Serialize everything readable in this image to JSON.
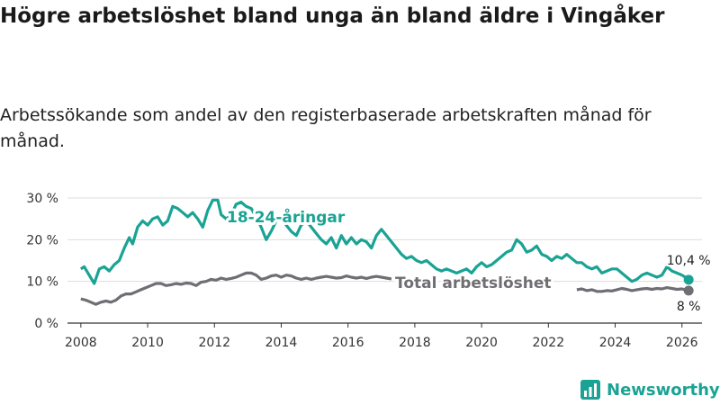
{
  "title": "Högre arbetslöshet bland unga än bland äldre i Vingåker",
  "subtitle": "Arbetssökande som andel av den registerbaserade arbetskraften månad för månad.",
  "brand": {
    "name": "Newsworthy",
    "color": "#1aa394",
    "icon": "bar-chart-logo-icon"
  },
  "chart_data": {
    "type": "line",
    "title": "Högre arbetslöshet bland unga än bland äldre i Vingåker",
    "xlabel": "",
    "ylabel": "",
    "xlim": [
      2007.6,
      2026.6
    ],
    "ylim": [
      0,
      30
    ],
    "grid": true,
    "x_ticks": [
      2008,
      2010,
      2012,
      2014,
      2016,
      2018,
      2020,
      2022,
      2024,
      2026
    ],
    "x_tick_labels": [
      "2008",
      "2010",
      "2012",
      "2014",
      "2016",
      "2018",
      "2020",
      "2022",
      "2024",
      "2026"
    ],
    "y_ticks": [
      0,
      10,
      20,
      30
    ],
    "y_tick_labels": [
      "0 %",
      "10 %",
      "20 %",
      "30 %"
    ],
    "series": [
      {
        "name": "18-24-åringar",
        "label": "18-24-åringar",
        "color": "#1aa394",
        "end_label": "10,4 %",
        "points": [
          [
            2008.0,
            13.0
          ],
          [
            2008.1,
            13.5
          ],
          [
            2008.25,
            11.5
          ],
          [
            2008.4,
            9.5
          ],
          [
            2008.55,
            13.0
          ],
          [
            2008.7,
            13.5
          ],
          [
            2008.85,
            12.5
          ],
          [
            2009.0,
            14.0
          ],
          [
            2009.15,
            15.0
          ],
          [
            2009.3,
            18.0
          ],
          [
            2009.45,
            20.5
          ],
          [
            2009.55,
            19.0
          ],
          [
            2009.7,
            23.0
          ],
          [
            2009.85,
            24.5
          ],
          [
            2010.0,
            23.5
          ],
          [
            2010.15,
            25.0
          ],
          [
            2010.3,
            25.5
          ],
          [
            2010.45,
            23.5
          ],
          [
            2010.6,
            24.5
          ],
          [
            2010.75,
            28.0
          ],
          [
            2010.9,
            27.5
          ],
          [
            2011.05,
            26.5
          ],
          [
            2011.2,
            25.5
          ],
          [
            2011.35,
            26.5
          ],
          [
            2011.5,
            25.0
          ],
          [
            2011.65,
            23.0
          ],
          [
            2011.8,
            27.0
          ],
          [
            2011.95,
            29.5
          ],
          [
            2012.1,
            29.5
          ],
          [
            2012.2,
            26.0
          ],
          [
            2012.35,
            25.0
          ],
          [
            2012.5,
            26.0
          ],
          [
            2012.65,
            28.5
          ],
          [
            2012.8,
            29.0
          ],
          [
            2012.95,
            28.0
          ],
          [
            2013.1,
            27.5
          ],
          [
            2013.25,
            25.5
          ],
          [
            2013.4,
            23.0
          ],
          [
            2013.55,
            20.0
          ],
          [
            2013.7,
            22.0
          ],
          [
            2013.85,
            24.5
          ],
          [
            2014.0,
            25.0
          ],
          [
            2014.15,
            23.5
          ],
          [
            2014.3,
            22.0
          ],
          [
            2014.45,
            21.0
          ],
          [
            2014.6,
            23.5
          ],
          [
            2014.75,
            24.5
          ],
          [
            2014.9,
            23.0
          ],
          [
            2015.05,
            21.5
          ],
          [
            2015.2,
            20.0
          ],
          [
            2015.35,
            19.0
          ],
          [
            2015.5,
            20.5
          ],
          [
            2015.65,
            18.0
          ],
          [
            2015.8,
            21.0
          ],
          [
            2015.95,
            19.0
          ],
          [
            2016.1,
            20.5
          ],
          [
            2016.25,
            19.0
          ],
          [
            2016.4,
            20.0
          ],
          [
            2016.55,
            19.5
          ],
          [
            2016.7,
            18.0
          ],
          [
            2016.85,
            21.0
          ],
          [
            2017.0,
            22.5
          ],
          [
            2017.15,
            21.0
          ],
          [
            2017.3,
            19.5
          ],
          [
            2017.45,
            18.0
          ],
          [
            2017.6,
            16.5
          ],
          [
            2017.75,
            15.5
          ],
          [
            2017.9,
            16.0
          ],
          [
            2018.05,
            15.0
          ],
          [
            2018.2,
            14.5
          ],
          [
            2018.35,
            15.0
          ],
          [
            2018.5,
            14.0
          ],
          [
            2018.65,
            13.0
          ],
          [
            2018.8,
            12.5
          ],
          [
            2018.95,
            13.0
          ],
          [
            2019.1,
            12.5
          ],
          [
            2019.25,
            12.0
          ],
          [
            2019.4,
            12.5
          ],
          [
            2019.55,
            13.0
          ],
          [
            2019.7,
            12.0
          ],
          [
            2019.85,
            13.5
          ],
          [
            2020.0,
            14.5
          ],
          [
            2020.15,
            13.5
          ],
          [
            2020.3,
            14.0
          ],
          [
            2020.45,
            15.0
          ],
          [
            2020.6,
            16.0
          ],
          [
            2020.75,
            17.0
          ],
          [
            2020.9,
            17.5
          ],
          [
            2021.05,
            20.0
          ],
          [
            2021.2,
            19.0
          ],
          [
            2021.35,
            17.0
          ],
          [
            2021.5,
            17.5
          ],
          [
            2021.65,
            18.5
          ],
          [
            2021.8,
            16.5
          ],
          [
            2021.95,
            16.0
          ],
          [
            2022.1,
            15.0
          ],
          [
            2022.25,
            16.0
          ],
          [
            2022.4,
            15.5
          ],
          [
            2022.55,
            16.5
          ],
          [
            2022.7,
            15.5
          ],
          [
            2022.85,
            14.5
          ],
          [
            2023.0,
            14.5
          ],
          [
            2023.15,
            13.5
          ],
          [
            2023.3,
            13.0
          ],
          [
            2023.45,
            13.5
          ],
          [
            2023.6,
            12.0
          ],
          [
            2023.75,
            12.5
          ],
          [
            2023.9,
            13.0
          ],
          [
            2024.05,
            13.0
          ],
          [
            2024.2,
            12.0
          ],
          [
            2024.35,
            11.0
          ],
          [
            2024.5,
            10.0
          ],
          [
            2024.65,
            10.5
          ],
          [
            2024.8,
            11.5
          ],
          [
            2024.95,
            12.0
          ],
          [
            2025.1,
            11.5
          ],
          [
            2025.25,
            11.0
          ],
          [
            2025.4,
            11.5
          ],
          [
            2025.55,
            13.5
          ],
          [
            2025.7,
            12.5
          ],
          [
            2025.85,
            12.0
          ],
          [
            2026.0,
            11.5
          ],
          [
            2026.1,
            11.0
          ],
          [
            2026.2,
            10.4
          ]
        ]
      },
      {
        "name": "Total arbetslöshet",
        "label": "Total arbetslöshet",
        "color": "#6e6e73",
        "end_label": "8 %",
        "points": [
          [
            2008.0,
            5.8
          ],
          [
            2008.15,
            5.5
          ],
          [
            2008.3,
            5.0
          ],
          [
            2008.45,
            4.5
          ],
          [
            2008.6,
            5.0
          ],
          [
            2008.75,
            5.3
          ],
          [
            2008.9,
            5.0
          ],
          [
            2009.05,
            5.5
          ],
          [
            2009.2,
            6.5
          ],
          [
            2009.35,
            7.0
          ],
          [
            2009.5,
            7.0
          ],
          [
            2009.65,
            7.5
          ],
          [
            2009.8,
            8.0
          ],
          [
            2009.95,
            8.5
          ],
          [
            2010.1,
            9.0
          ],
          [
            2010.25,
            9.5
          ],
          [
            2010.4,
            9.5
          ],
          [
            2010.55,
            9.0
          ],
          [
            2010.7,
            9.2
          ],
          [
            2010.85,
            9.5
          ],
          [
            2011.0,
            9.3
          ],
          [
            2011.15,
            9.6
          ],
          [
            2011.3,
            9.5
          ],
          [
            2011.45,
            9.0
          ],
          [
            2011.6,
            9.8
          ],
          [
            2011.75,
            10.0
          ],
          [
            2011.9,
            10.5
          ],
          [
            2012.05,
            10.3
          ],
          [
            2012.2,
            10.8
          ],
          [
            2012.35,
            10.5
          ],
          [
            2012.5,
            10.7
          ],
          [
            2012.65,
            11.0
          ],
          [
            2012.8,
            11.5
          ],
          [
            2012.95,
            12.0
          ],
          [
            2013.1,
            12.0
          ],
          [
            2013.25,
            11.5
          ],
          [
            2013.4,
            10.5
          ],
          [
            2013.55,
            10.8
          ],
          [
            2013.7,
            11.3
          ],
          [
            2013.85,
            11.5
          ],
          [
            2014.0,
            11.0
          ],
          [
            2014.15,
            11.5
          ],
          [
            2014.3,
            11.3
          ],
          [
            2014.45,
            10.8
          ],
          [
            2014.6,
            10.5
          ],
          [
            2014.75,
            10.8
          ],
          [
            2014.9,
            10.5
          ],
          [
            2015.05,
            10.8
          ],
          [
            2015.2,
            11.0
          ],
          [
            2015.35,
            11.2
          ],
          [
            2015.5,
            11.0
          ],
          [
            2015.65,
            10.8
          ],
          [
            2015.8,
            10.9
          ],
          [
            2015.95,
            11.3
          ],
          [
            2016.1,
            11.0
          ],
          [
            2016.25,
            10.8
          ],
          [
            2016.4,
            11.0
          ],
          [
            2016.55,
            10.7
          ],
          [
            2016.7,
            11.0
          ],
          [
            2016.85,
            11.2
          ],
          [
            2017.0,
            11.0
          ],
          [
            2017.15,
            10.8
          ],
          [
            2017.3,
            10.6
          ]
        ],
        "points_after_label": [
          [
            2022.85,
            8.0
          ],
          [
            2023.0,
            8.2
          ],
          [
            2023.15,
            7.8
          ],
          [
            2023.3,
            8.0
          ],
          [
            2023.45,
            7.6
          ],
          [
            2023.6,
            7.6
          ],
          [
            2023.75,
            7.8
          ],
          [
            2023.9,
            7.7
          ],
          [
            2024.05,
            8.0
          ],
          [
            2024.2,
            8.3
          ],
          [
            2024.35,
            8.1
          ],
          [
            2024.5,
            7.8
          ],
          [
            2024.65,
            8.0
          ],
          [
            2024.8,
            8.2
          ],
          [
            2024.95,
            8.3
          ],
          [
            2025.1,
            8.1
          ],
          [
            2025.25,
            8.3
          ],
          [
            2025.4,
            8.2
          ],
          [
            2025.55,
            8.5
          ],
          [
            2025.7,
            8.3
          ],
          [
            2025.85,
            8.1
          ],
          [
            2026.0,
            8.2
          ],
          [
            2026.1,
            8.0
          ],
          [
            2026.2,
            7.8
          ]
        ]
      }
    ]
  }
}
